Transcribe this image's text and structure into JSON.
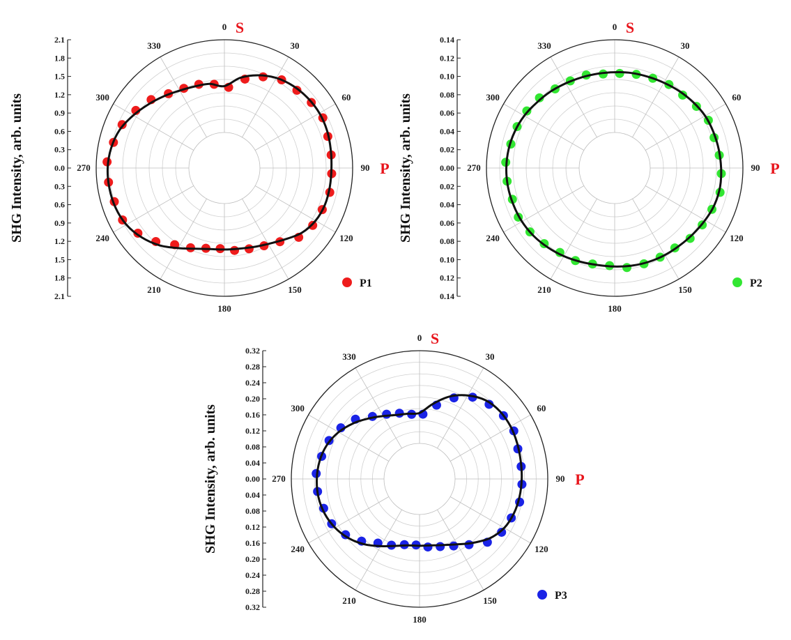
{
  "chart_data": [
    {
      "type": "polar-scatter",
      "series_name": "P1",
      "color": "#ee1c1c",
      "ylabel": "SHG Intensity, arb. units",
      "rlim": [
        0,
        2.1
      ],
      "r_ticks": [
        "2.1",
        "1.8",
        "1.5",
        "1.2",
        "0.9",
        "0.6",
        "0.3",
        "0.0",
        "0.3",
        "0.6",
        "0.9",
        "1.2",
        "1.5",
        "1.8",
        "2.1"
      ],
      "angle_ticks": [
        0,
        30,
        60,
        90,
        120,
        150,
        180,
        210,
        240,
        270,
        300,
        330
      ],
      "pol_labels": {
        "top": "S",
        "right": "P"
      },
      "angles": [
        0,
        10,
        20,
        30,
        40,
        50,
        60,
        70,
        80,
        90,
        100,
        110,
        120,
        130,
        140,
        150,
        160,
        170,
        180,
        190,
        200,
        210,
        220,
        230,
        240,
        250,
        260,
        270,
        280,
        290,
        300,
        310,
        320,
        330,
        340,
        350
      ],
      "values": [
        1.05,
        1.27,
        1.43,
        1.55,
        1.62,
        1.66,
        1.68,
        1.67,
        1.64,
        1.62,
        1.62,
        1.62,
        1.58,
        1.48,
        1.31,
        1.18,
        1.1,
        1.05,
        1.04,
        1.06,
        1.14,
        1.29,
        1.48,
        1.64,
        1.76,
        1.82,
        1.84,
        1.84,
        1.8,
        1.72,
        1.58,
        1.44,
        1.32,
        1.22,
        1.16,
        1.13
      ]
    },
    {
      "type": "polar-scatter",
      "series_name": "P2",
      "color": "#32e632",
      "ylabel": "SHG Intensity, arb. units",
      "rlim": [
        0,
        0.14
      ],
      "r_ticks": [
        "0.14",
        "0.12",
        "0.10",
        "0.08",
        "0.06",
        "0.04",
        "0.02",
        "0.00",
        "0.02",
        "0.04",
        "0.06",
        "0.08",
        "0.10",
        "0.12",
        "0.14"
      ],
      "angle_ticks": [
        0,
        30,
        60,
        90,
        120,
        150,
        180,
        210,
        240,
        270,
        300,
        330
      ],
      "pol_labels": {
        "top": "S",
        "right": "P"
      },
      "angles": [
        0,
        10,
        20,
        30,
        40,
        50,
        60,
        70,
        80,
        90,
        100,
        110,
        120,
        130,
        140,
        150,
        160,
        170,
        180,
        190,
        200,
        210,
        220,
        230,
        240,
        250,
        260,
        270,
        280,
        290,
        300,
        310,
        320,
        330,
        340,
        350
      ],
      "values": [
        0.091,
        0.092,
        0.093,
        0.095,
        0.098,
        0.101,
        0.104,
        0.105,
        0.106,
        0.107,
        0.108,
        0.107,
        0.104,
        0.101,
        0.099,
        0.098,
        0.097,
        0.096,
        0.095,
        0.095,
        0.097,
        0.1,
        0.103,
        0.106,
        0.108,
        0.109,
        0.11,
        0.11,
        0.109,
        0.107,
        0.104,
        0.1,
        0.097,
        0.094,
        0.092,
        0.091
      ]
    },
    {
      "type": "polar-scatter",
      "series_name": "P3",
      "color": "#1a23e6",
      "ylabel": "SHG Intensity, arb. units",
      "rlim": [
        0,
        0.32
      ],
      "r_ticks": [
        "0.32",
        "0.28",
        "0.24",
        "0.20",
        "0.16",
        "0.12",
        "0.08",
        "0.04",
        "0.00",
        "0.04",
        "0.08",
        "0.12",
        "0.16",
        "0.20",
        "0.24",
        "0.28",
        "0.32"
      ],
      "angle_ticks": [
        0,
        30,
        60,
        90,
        120,
        150,
        180,
        210,
        240,
        270,
        300,
        330
      ],
      "pol_labels": {
        "top": "S",
        "right": "P"
      },
      "angles": [
        0,
        10,
        20,
        30,
        40,
        50,
        60,
        70,
        80,
        90,
        100,
        110,
        120,
        130,
        140,
        150,
        160,
        170,
        180,
        190,
        200,
        210,
        220,
        230,
        240,
        250,
        260,
        270,
        280,
        290,
        300,
        310,
        320,
        330,
        340,
        350
      ],
      "values": [
        0.105,
        0.14,
        0.18,
        0.21,
        0.232,
        0.24,
        0.24,
        0.236,
        0.232,
        0.23,
        0.228,
        0.224,
        0.215,
        0.195,
        0.165,
        0.138,
        0.12,
        0.11,
        0.108,
        0.11,
        0.123,
        0.145,
        0.172,
        0.196,
        0.214,
        0.226,
        0.232,
        0.232,
        0.228,
        0.218,
        0.2,
        0.176,
        0.15,
        0.128,
        0.112,
        0.106
      ]
    }
  ]
}
